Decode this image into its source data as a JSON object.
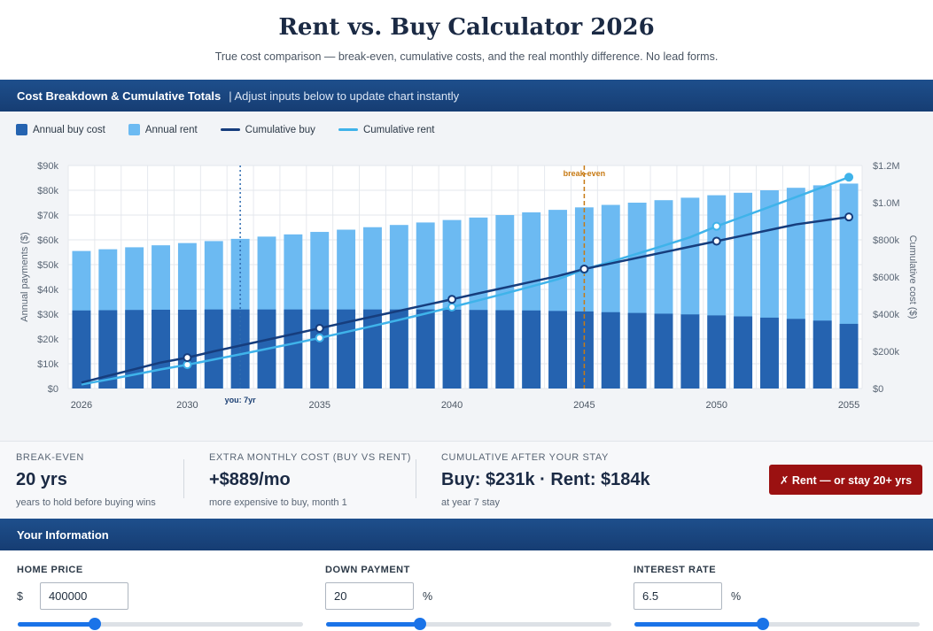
{
  "header": {
    "title": "Rent vs. Buy Calculator 2026",
    "subtitle": "True cost comparison — break-even, cumulative costs, and the real monthly difference. No lead forms."
  },
  "chart_section": {
    "title": "Cost Breakdown & Cumulative Totals",
    "hint": "| Adjust inputs below to update chart instantly"
  },
  "colors": {
    "buy_bar": "#2563b0",
    "rent_bar": "#6cbaf2",
    "cum_buy": "#163d7d",
    "cum_rent": "#3fb3ea",
    "break_even": "#c77a14",
    "stay": "#2e6bb0",
    "verdict": "#9b1111"
  },
  "legend": [
    {
      "label": "Annual buy cost",
      "kind": "bar",
      "color": "#2563b0"
    },
    {
      "label": "Annual rent",
      "kind": "bar",
      "color": "#6cbaf2"
    },
    {
      "label": "Cumulative buy",
      "kind": "line",
      "color": "#163d7d"
    },
    {
      "label": "Cumulative rent",
      "kind": "line",
      "color": "#3fb3ea"
    }
  ],
  "chart_data": {
    "type": "bar",
    "x": [
      2026,
      2027,
      2028,
      2029,
      2030,
      2031,
      2032,
      2033,
      2034,
      2035,
      2036,
      2037,
      2038,
      2039,
      2040,
      2041,
      2042,
      2043,
      2044,
      2045,
      2046,
      2047,
      2048,
      2049,
      2050,
      2051,
      2052,
      2053,
      2054,
      2055
    ],
    "x_ticks": [
      "2026",
      "2030",
      "2035",
      "2040",
      "2045",
      "2050",
      "2055"
    ],
    "ylabel": "Annual payments ($)",
    "y2label": "Cumulative cost ($)",
    "ylim": [
      0,
      90000
    ],
    "y2lim": [
      0,
      1200000
    ],
    "y_ticks": [
      "$0",
      "$10k",
      "$20k",
      "$30k",
      "$40k",
      "$50k",
      "$60k",
      "$70k",
      "$80k",
      "$90k"
    ],
    "y2_ticks": [
      "$0",
      "$200k",
      "$400k",
      "$600k",
      "$800k",
      "$1.0M",
      "$1.2M"
    ],
    "series": [
      {
        "name": "Annual buy cost",
        "axis": "left",
        "values": [
          31500,
          31600,
          31700,
          31800,
          31800,
          31900,
          31900,
          31900,
          31900,
          31900,
          31900,
          31900,
          31900,
          31900,
          31800,
          31700,
          31600,
          31500,
          31300,
          31100,
          30800,
          30500,
          30200,
          29900,
          29500,
          29100,
          28600,
          28100,
          27400,
          26100
        ]
      },
      {
        "name": "Annual rent",
        "axis": "left",
        "values": [
          55500,
          56200,
          57000,
          57800,
          58700,
          59500,
          60400,
          61300,
          62200,
          63200,
          64100,
          65100,
          66000,
          67000,
          68000,
          69000,
          70000,
          71100,
          72100,
          73100,
          74100,
          75000,
          76000,
          77000,
          78000,
          79000,
          80000,
          81000,
          82000,
          82700
        ]
      },
      {
        "name": "Cumulative buy",
        "axis": "right",
        "values": [
          32000,
          68000,
          104000,
          140000,
          166000,
          200000,
          231000,
          262000,
          293000,
          324000,
          356000,
          387000,
          418000,
          449000,
          480000,
          512000,
          543000,
          574000,
          605000,
          643000,
          673000,
          703000,
          733000,
          763000,
          793000,
          823000,
          853000,
          883000,
          903000,
          923000
        ]
      },
      {
        "name": "Cumulative rent",
        "axis": "right",
        "values": [
          22000,
          48000,
          75000,
          103000,
          128000,
          156000,
          184000,
          213000,
          242000,
          272000,
          304000,
          336000,
          369000,
          403000,
          438000,
          474000,
          511000,
          549000,
          588000,
          640000,
          682000,
          725000,
          769000,
          814000,
          873000,
          925000,
          977000,
          1030000,
          1083000,
          1137000
        ]
      }
    ],
    "markers": {
      "cum_buy_years": [
        2030,
        2035,
        2040,
        2045,
        2050,
        2055
      ],
      "cum_rent_years": [
        2030,
        2035,
        2040,
        2045,
        2050,
        2055
      ]
    },
    "annotations": {
      "break_even_year": 2045,
      "break_even_label": "break-even",
      "stay_year": 2032,
      "stay_label": "you: 7yr"
    },
    "legend_position": "top-left",
    "grid": true
  },
  "stats": {
    "break_even": {
      "label": "BREAK-EVEN",
      "value": "20 yrs",
      "sub": "years to hold before buying wins"
    },
    "extra_monthly": {
      "label": "EXTRA MONTHLY COST (BUY VS RENT)",
      "value": "+$889/mo",
      "sub": "more expensive to buy, month 1"
    },
    "cumulative": {
      "label": "CUMULATIVE AFTER YOUR STAY",
      "value": "Buy: $231k · Rent: $184k",
      "sub": "at year 7 stay"
    },
    "verdict_label": "✗ Rent — or stay 20+ yrs"
  },
  "inputs_section": {
    "title": "Your Information"
  },
  "inputs": {
    "home_price": {
      "label": "HOME PRICE",
      "prefix": "$",
      "value": "400000",
      "slider_fraction": 0.27
    },
    "down_payment": {
      "label": "DOWN PAYMENT",
      "suffix": "%",
      "value": "20",
      "slider_fraction": 0.33
    },
    "interest_rate": {
      "label": "INTEREST RATE",
      "suffix": "%",
      "value": "6.5",
      "slider_fraction": 0.45
    }
  }
}
